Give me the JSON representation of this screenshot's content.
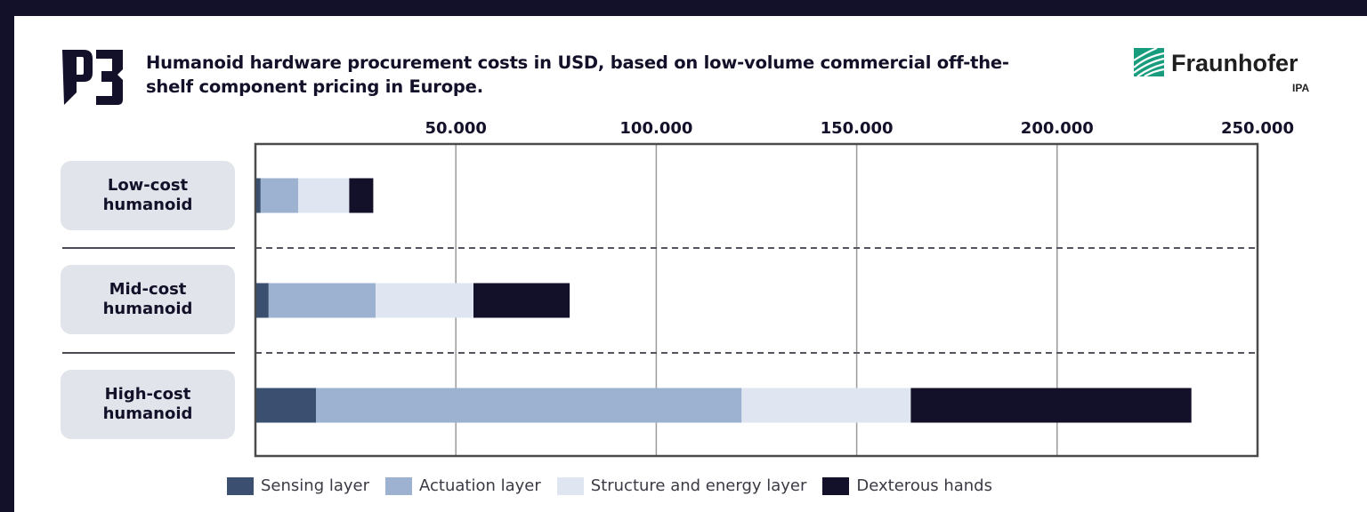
{
  "header": {
    "logo_text": "P3",
    "title_line1": "Humanoid hardware procurement costs in USD, based on low-volume commercial off-the-",
    "title_line2": "shelf component pricing in Europe.",
    "brand_name": "Fraunhofer",
    "brand_sub": "IPA"
  },
  "colors": {
    "background": "#131129",
    "sensing": "#3b5070",
    "actuation": "#9db1d1",
    "structure": "#dfe6f1",
    "hands": "#131129",
    "brand_green": "#179c7d"
  },
  "chart_data": {
    "type": "bar",
    "orientation": "horizontal",
    "stacked": true,
    "title": "Humanoid hardware procurement costs in USD, based on low-volume commercial off-the-shelf component pricing in Europe.",
    "categories": [
      "Low-cost humanoid",
      "Mid-cost humanoid",
      "High-cost humanoid"
    ],
    "category_lines": [
      [
        "Low-cost",
        "humanoid"
      ],
      [
        "Mid-cost",
        "humanoid"
      ],
      [
        "High-cost",
        "humanoid"
      ]
    ],
    "series": [
      {
        "name": "Sensing layer",
        "color": "#3b5070",
        "values": [
          1300,
          3300,
          15100
        ]
      },
      {
        "name": "Actuation layer",
        "color": "#9db1d1",
        "values": [
          9400,
          26700,
          106200
        ]
      },
      {
        "name": "Structure and energy layer",
        "color": "#dfe6f1",
        "values": [
          12700,
          24400,
          42200
        ]
      },
      {
        "name": "Dexterous hands",
        "color": "#131129",
        "values": [
          6000,
          24000,
          70000
        ]
      }
    ],
    "xlim": [
      0,
      250000
    ],
    "xticks": [
      50000,
      100000,
      150000,
      200000,
      250000
    ],
    "xtick_labels": [
      "50.000",
      "100.000",
      "150.000",
      "200.000",
      "250.000"
    ],
    "xlabel": "",
    "ylabel": "",
    "grid": true,
    "legend_position": "bottom"
  }
}
